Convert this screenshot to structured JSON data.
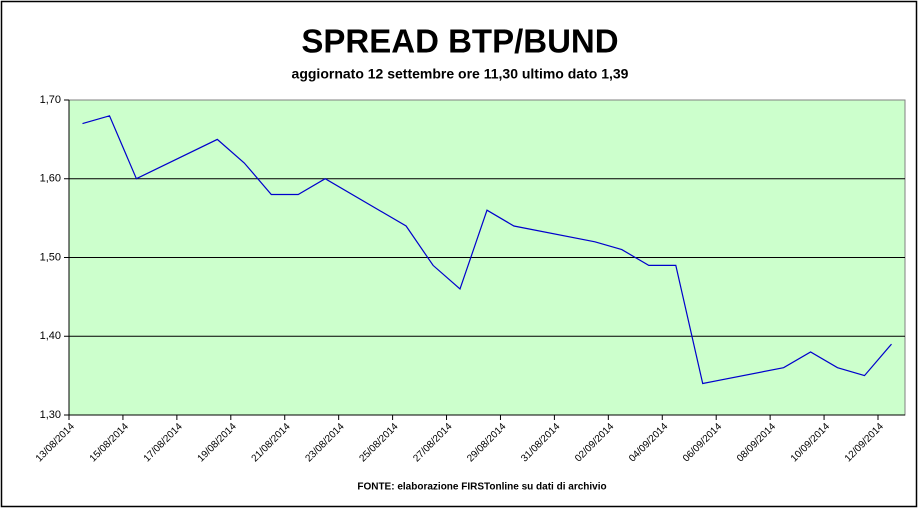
{
  "chart_data": {
    "type": "line",
    "title": "SPREAD BTP/BUND",
    "subtitle": "aggiornato 12 settembre ore 11,30 ultimo dato 1,39",
    "source": "FONTE: elaborazione FIRSTonline su dati di archivio",
    "x": [
      "13/08/2014",
      "14/08/2014",
      "15/08/2014",
      "18/08/2014",
      "19/08/2014",
      "20/08/2014",
      "21/08/2014",
      "22/08/2014",
      "25/08/2014",
      "26/08/2014",
      "27/08/2014",
      "28/08/2014",
      "29/08/2014",
      "01/09/2014",
      "02/09/2014",
      "03/09/2014",
      "04/09/2014",
      "05/09/2014",
      "08/09/2014",
      "09/09/2014",
      "10/09/2014",
      "11/09/2014",
      "12/09/2014"
    ],
    "series": [
      {
        "name": "BTP/BUND",
        "color": "#0000cc",
        "values": [
          1.67,
          1.68,
          1.6,
          1.65,
          1.62,
          1.58,
          1.58,
          1.6,
          1.54,
          1.49,
          1.46,
          1.56,
          1.54,
          1.52,
          1.51,
          1.49,
          1.49,
          1.34,
          1.36,
          1.38,
          1.36,
          1.35,
          1.39
        ]
      }
    ],
    "xticks": [
      "13/08/2014",
      "15/08/2014",
      "17/08/2014",
      "19/08/2014",
      "21/08/2014",
      "23/08/2014",
      "25/08/2014",
      "27/08/2014",
      "29/08/2014",
      "31/08/2014",
      "02/09/2014",
      "04/09/2014",
      "06/09/2014",
      "08/09/2014",
      "10/09/2014",
      "12/09/2014"
    ],
    "ylim": [
      1.3,
      1.7
    ],
    "yticks": [
      {
        "value": 1.3,
        "label": "1,30"
      },
      {
        "value": 1.4,
        "label": "1,40"
      },
      {
        "value": 1.5,
        "label": "1,50"
      },
      {
        "value": 1.6,
        "label": "1,60"
      },
      {
        "value": 1.7,
        "label": "1,70"
      }
    ],
    "grid": true,
    "plot_background": "#ccffcc"
  }
}
